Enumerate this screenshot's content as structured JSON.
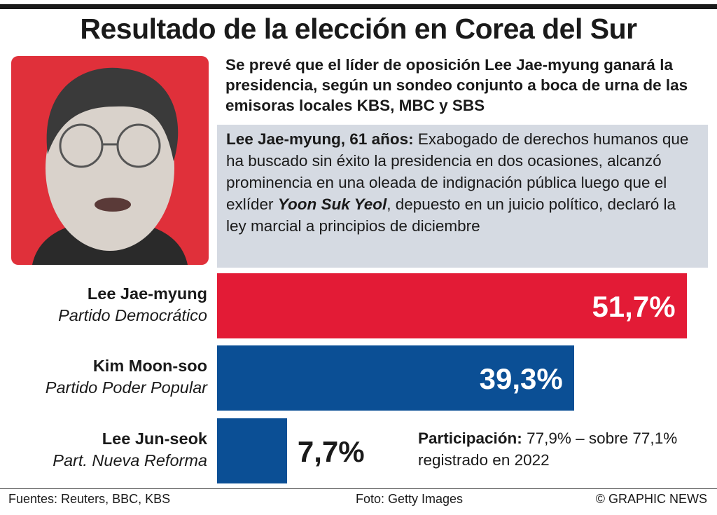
{
  "chart_data": {
    "type": "bar",
    "title": "Resultado de la elección en Corea del Sur",
    "subtitle": "Se prevé que el líder de oposición Lee Jae-myung ganará la presidencia, según un sondeo conjunto a boca de urna de las emisoras locales KBS, MBC y SBS",
    "bio": {
      "name": "Lee Jae-myung, 61 años:",
      "text1": "Exabogado de derechos humanos que ha buscado sin éxito la presidencia en dos ocasiones, alcanzó prominencia en una oleada de indignación pública luego que el exlíder",
      "highlight": "Yoon Suk Yeol",
      "text2": ", depuesto en un juicio político, declaró la ley marcial a principios de diciembre"
    },
    "categories": [
      "Lee Jae-myung",
      "Kim Moon-soo",
      "Lee Jun-seok"
    ],
    "parties": [
      "Partido Democrático",
      "Partido Poder Popular",
      "Part. Nueva Reforma"
    ],
    "values": [
      51.7,
      39.3,
      7.7
    ],
    "value_labels": [
      "51,7%",
      "39,3%",
      "7,7%"
    ],
    "colors": [
      "#e31b36",
      "#0b4f95",
      "#0b4f95"
    ],
    "turnout": {
      "label": "Participación:",
      "text": "77,9% – sobre 77,1% registrado en 2022"
    },
    "sources": "Fuentes: Reuters, BBC, KBS",
    "photo_credit": "Foto: Getty Images",
    "credit": "© GRAPHIC NEWS"
  }
}
